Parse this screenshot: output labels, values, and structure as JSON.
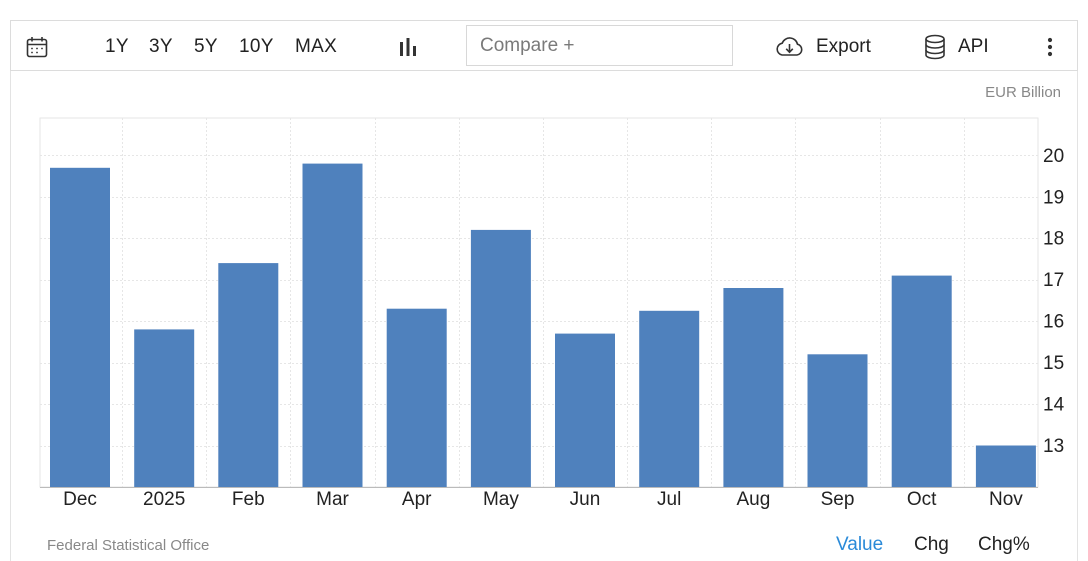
{
  "toolbar": {
    "ranges": [
      "1Y",
      "3Y",
      "5Y",
      "10Y",
      "MAX"
    ],
    "compare_placeholder": "Compare +",
    "export_label": "Export",
    "api_label": "API",
    "icons": [
      "calendar-icon",
      "bar-chart-icon",
      "cloud-download-icon",
      "database-icon",
      "more-vertical-icon"
    ]
  },
  "footer": {
    "source": "Federal Statistical Office",
    "toggles": [
      "Value",
      "Chg",
      "Chg%"
    ],
    "active_toggle": "Value"
  },
  "colors": {
    "bar": "#4f81bd",
    "active_toggle": "#2a8ad8",
    "grid": "#e6e6e6"
  },
  "chart_data": {
    "type": "bar",
    "unit_label": "EUR Billion",
    "categories": [
      "Dec",
      "2025",
      "Feb",
      "Mar",
      "Apr",
      "May",
      "Jun",
      "Jul",
      "Aug",
      "Sep",
      "Oct",
      "Nov"
    ],
    "values": [
      19.7,
      15.8,
      17.4,
      19.8,
      16.3,
      18.2,
      15.7,
      16.25,
      16.8,
      15.2,
      17.1,
      13.0
    ],
    "ylim": [
      12.0,
      20.9
    ],
    "yticks": [
      13,
      14,
      15,
      16,
      17,
      18,
      19,
      20
    ],
    "y_axis_side": "right",
    "grid": true
  }
}
